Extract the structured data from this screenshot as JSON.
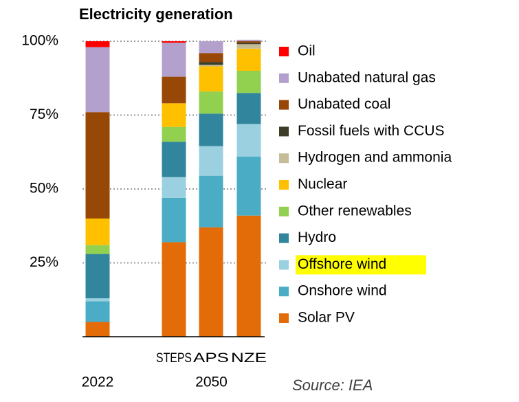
{
  "chart_data": {
    "type": "stacked_bar",
    "title": "Electricity generation",
    "categories": [
      null,
      "STEPS",
      "APS",
      "NZE"
    ],
    "group_labels": [
      "2022",
      "2050"
    ],
    "groups": [
      0,
      1,
      1,
      1
    ],
    "ylim": [
      0,
      100
    ],
    "yticks": [
      {
        "value": 25,
        "label": "25%"
      },
      {
        "value": 50,
        "label": "50%"
      },
      {
        "value": 75,
        "label": "75%"
      },
      {
        "value": 100,
        "label": "100%"
      }
    ],
    "grid": true,
    "legend": "right",
    "series": [
      {
        "name": "Oil",
        "color": "#ff0000",
        "values": [
          2,
          0.5,
          0,
          0
        ]
      },
      {
        "name": "Unabated natural gas",
        "color": "#b4a0cc",
        "values": [
          22,
          11.5,
          4,
          0.5
        ]
      },
      {
        "name": "Unabated coal",
        "color": "#974706",
        "values": [
          36,
          9,
          3,
          0.5
        ]
      },
      {
        "name": "Fossil fuels with CCUS",
        "color": "#3d3d2a",
        "values": [
          0,
          0,
          1,
          0.5
        ]
      },
      {
        "name": "Hydrogen and ammonia",
        "color": "#c4bd97",
        "values": [
          0,
          0,
          0.5,
          1.5
        ]
      },
      {
        "name": "Nuclear",
        "color": "#ffc000",
        "values": [
          9,
          8,
          8.5,
          7.5
        ]
      },
      {
        "name": "Other renewables",
        "color": "#92d050",
        "values": [
          3,
          5,
          7.5,
          7.5
        ]
      },
      {
        "name": "Hydro",
        "color": "#31859c",
        "values": [
          15,
          12,
          11,
          10.5
        ]
      },
      {
        "name": "Offshore wind",
        "color": "#9bd0e0",
        "highlight": "#ffff00",
        "values": [
          1,
          7,
          10,
          11
        ]
      },
      {
        "name": "Onshore wind",
        "color": "#4bacc6",
        "values": [
          7,
          15,
          17.5,
          20
        ]
      },
      {
        "name": "Solar PV",
        "color": "#e36c09",
        "values": [
          5,
          32,
          37,
          41
        ]
      }
    ],
    "source": "Source: IEA"
  }
}
